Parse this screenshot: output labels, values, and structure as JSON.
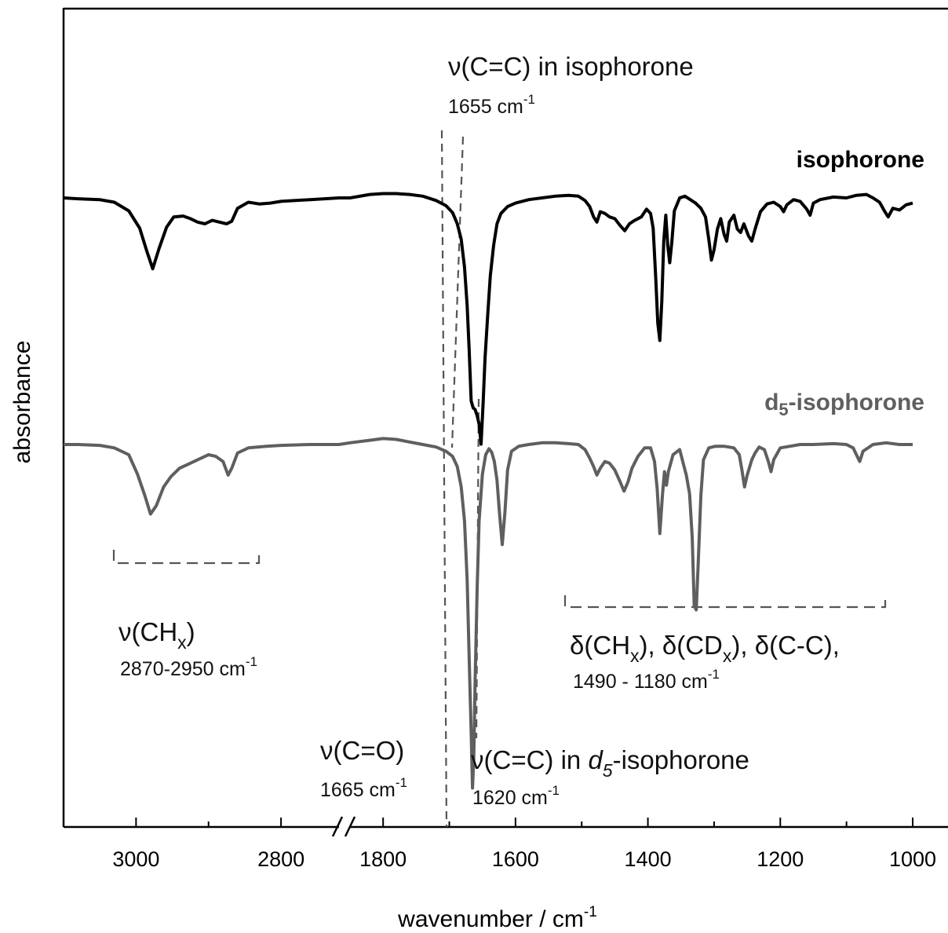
{
  "chart_data": {
    "type": "line",
    "title": "",
    "xlabel": "wavenumber / cm",
    "xlabel_superscript": "-1",
    "ylabel": "absorbance",
    "x_axis": {
      "broken": true,
      "left_segment": {
        "range": [
          3100,
          2720
        ],
        "ticks": [
          3000,
          2800
        ]
      },
      "right_segment": {
        "range": [
          1850,
          1000
        ],
        "ticks": [
          1800,
          1600,
          1400,
          1200,
          1000
        ]
      },
      "reversed": true
    },
    "y_ticks_shown": false,
    "grid": false,
    "series": [
      {
        "name": "isophorone",
        "color": "#000000",
        "label_text": "isophorone",
        "baseline": 0,
        "points": [
          [
            3100,
            0
          ],
          [
            3080,
            0.01
          ],
          [
            3050,
            0.02
          ],
          [
            3030,
            0.05
          ],
          [
            3010,
            0.15
          ],
          [
            2995,
            0.35
          ],
          [
            2985,
            0.62
          ],
          [
            2977,
            0.82
          ],
          [
            2968,
            0.58
          ],
          [
            2958,
            0.34
          ],
          [
            2948,
            0.22
          ],
          [
            2935,
            0.21
          ],
          [
            2925,
            0.24
          ],
          [
            2915,
            0.28
          ],
          [
            2905,
            0.3
          ],
          [
            2895,
            0.26
          ],
          [
            2885,
            0.28
          ],
          [
            2875,
            0.3
          ],
          [
            2868,
            0.27
          ],
          [
            2860,
            0.12
          ],
          [
            2845,
            0.05
          ],
          [
            2830,
            0.07
          ],
          [
            2815,
            0.06
          ],
          [
            2800,
            0.04
          ],
          [
            2780,
            0.03
          ],
          [
            2760,
            0.02
          ],
          [
            2740,
            0.01
          ],
          [
            2720,
            0.0
          ],
          [
            1850,
            0.0
          ],
          [
            1820,
            -0.04
          ],
          [
            1800,
            -0.05
          ],
          [
            1780,
            -0.05
          ],
          [
            1760,
            -0.04
          ],
          [
            1740,
            -0.02
          ],
          [
            1720,
            0.03
          ],
          [
            1705,
            0.09
          ],
          [
            1695,
            0.17
          ],
          [
            1688,
            0.3
          ],
          [
            1682,
            0.48
          ],
          [
            1677,
            0.8
          ],
          [
            1673,
            1.25
          ],
          [
            1670,
            1.75
          ],
          [
            1667,
            2.35
          ],
          [
            1664,
            2.43
          ],
          [
            1661,
            2.45
          ],
          [
            1658,
            2.52
          ],
          [
            1655,
            2.62
          ],
          [
            1652,
            2.85
          ],
          [
            1649,
            2.4
          ],
          [
            1646,
            1.85
          ],
          [
            1642,
            1.35
          ],
          [
            1638,
            0.9
          ],
          [
            1633,
            0.55
          ],
          [
            1628,
            0.3
          ],
          [
            1622,
            0.18
          ],
          [
            1612,
            0.1
          ],
          [
            1600,
            0.06
          ],
          [
            1580,
            0.02
          ],
          [
            1560,
            0.0
          ],
          [
            1540,
            -0.02
          ],
          [
            1520,
            -0.03
          ],
          [
            1505,
            -0.02
          ],
          [
            1495,
            0.03
          ],
          [
            1488,
            0.1
          ],
          [
            1482,
            0.22
          ],
          [
            1477,
            0.28
          ],
          [
            1472,
            0.16
          ],
          [
            1465,
            0.18
          ],
          [
            1458,
            0.22
          ],
          [
            1450,
            0.24
          ],
          [
            1442,
            0.32
          ],
          [
            1435,
            0.38
          ],
          [
            1428,
            0.3
          ],
          [
            1420,
            0.26
          ],
          [
            1410,
            0.22
          ],
          [
            1402,
            0.13
          ],
          [
            1396,
            0.18
          ],
          [
            1392,
            0.35
          ],
          [
            1388,
            0.95
          ],
          [
            1385,
            1.45
          ],
          [
            1382,
            1.65
          ],
          [
            1379,
            1.2
          ],
          [
            1376,
            0.5
          ],
          [
            1373,
            0.2
          ],
          [
            1370,
            0.55
          ],
          [
            1367,
            0.75
          ],
          [
            1364,
            0.52
          ],
          [
            1360,
            0.15
          ],
          [
            1352,
            0.0
          ],
          [
            1344,
            -0.02
          ],
          [
            1336,
            0.02
          ],
          [
            1328,
            0.06
          ],
          [
            1320,
            0.12
          ],
          [
            1313,
            0.22
          ],
          [
            1308,
            0.48
          ],
          [
            1304,
            0.72
          ],
          [
            1300,
            0.6
          ],
          [
            1295,
            0.36
          ],
          [
            1290,
            0.24
          ],
          [
            1285,
            0.42
          ],
          [
            1281,
            0.5
          ],
          [
            1277,
            0.28
          ],
          [
            1270,
            0.2
          ],
          [
            1265,
            0.36
          ],
          [
            1260,
            0.4
          ],
          [
            1255,
            0.3
          ],
          [
            1248,
            0.44
          ],
          [
            1243,
            0.5
          ],
          [
            1238,
            0.36
          ],
          [
            1230,
            0.16
          ],
          [
            1220,
            0.07
          ],
          [
            1210,
            0.05
          ],
          [
            1200,
            0.1
          ],
          [
            1195,
            0.16
          ],
          [
            1190,
            0.08
          ],
          [
            1180,
            0.02
          ],
          [
            1170,
            0.04
          ],
          [
            1160,
            0.13
          ],
          [
            1155,
            0.2
          ],
          [
            1150,
            0.06
          ],
          [
            1140,
            0.02
          ],
          [
            1120,
            -0.01
          ],
          [
            1100,
            0.0
          ],
          [
            1085,
            -0.03
          ],
          [
            1070,
            -0.04
          ],
          [
            1060,
            0.0
          ],
          [
            1050,
            0.05
          ],
          [
            1042,
            0.16
          ],
          [
            1037,
            0.22
          ],
          [
            1030,
            0.12
          ],
          [
            1020,
            0.14
          ],
          [
            1010,
            0.08
          ],
          [
            1000,
            0.06
          ]
        ]
      },
      {
        "name": "d5-isophorone",
        "color": "#5f5f5f",
        "label_text": "-isophorone",
        "label_prefix": "d",
        "label_subscript": "5",
        "baseline": 0,
        "points": [
          [
            3100,
            0
          ],
          [
            3080,
            0.0
          ],
          [
            3050,
            0.01
          ],
          [
            3030,
            0.04
          ],
          [
            3010,
            0.12
          ],
          [
            2998,
            0.35
          ],
          [
            2988,
            0.6
          ],
          [
            2980,
            0.82
          ],
          [
            2972,
            0.72
          ],
          [
            2962,
            0.5
          ],
          [
            2952,
            0.38
          ],
          [
            2940,
            0.28
          ],
          [
            2930,
            0.24
          ],
          [
            2915,
            0.18
          ],
          [
            2900,
            0.12
          ],
          [
            2890,
            0.14
          ],
          [
            2880,
            0.2
          ],
          [
            2873,
            0.36
          ],
          [
            2868,
            0.28
          ],
          [
            2860,
            0.1
          ],
          [
            2845,
            0.04
          ],
          [
            2820,
            0.02
          ],
          [
            2800,
            0.01
          ],
          [
            2760,
            0.0
          ],
          [
            2720,
            0.0
          ],
          [
            1850,
            -0.02
          ],
          [
            1820,
            -0.05
          ],
          [
            1800,
            -0.07
          ],
          [
            1780,
            -0.06
          ],
          [
            1760,
            -0.03
          ],
          [
            1740,
            0.0
          ],
          [
            1720,
            0.03
          ],
          [
            1705,
            0.08
          ],
          [
            1695,
            0.14
          ],
          [
            1688,
            0.26
          ],
          [
            1682,
            0.5
          ],
          [
            1677,
            0.9
          ],
          [
            1673,
            1.6
          ],
          [
            1670,
            2.5
          ],
          [
            1667,
            3.4
          ],
          [
            1665,
            4.05
          ],
          [
            1663,
            3.7
          ],
          [
            1661,
            2.8
          ],
          [
            1658,
            1.7
          ],
          [
            1655,
            0.9
          ],
          [
            1650,
            0.35
          ],
          [
            1645,
            0.12
          ],
          [
            1640,
            0.05
          ],
          [
            1636,
            0.09
          ],
          [
            1632,
            0.2
          ],
          [
            1628,
            0.42
          ],
          [
            1624,
            0.82
          ],
          [
            1620,
            1.18
          ],
          [
            1616,
            0.8
          ],
          [
            1612,
            0.3
          ],
          [
            1606,
            0.08
          ],
          [
            1595,
            0.02
          ],
          [
            1580,
            0.0
          ],
          [
            1560,
            -0.02
          ],
          [
            1540,
            -0.02
          ],
          [
            1520,
            -0.01
          ],
          [
            1505,
            0.0
          ],
          [
            1495,
            0.06
          ],
          [
            1488,
            0.16
          ],
          [
            1482,
            0.26
          ],
          [
            1477,
            0.36
          ],
          [
            1472,
            0.28
          ],
          [
            1465,
            0.2
          ],
          [
            1458,
            0.22
          ],
          [
            1450,
            0.3
          ],
          [
            1442,
            0.44
          ],
          [
            1436,
            0.55
          ],
          [
            1430,
            0.44
          ],
          [
            1424,
            0.28
          ],
          [
            1415,
            0.14
          ],
          [
            1405,
            0.04
          ],
          [
            1396,
            0.04
          ],
          [
            1390,
            0.2
          ],
          [
            1386,
            0.52
          ],
          [
            1382,
            1.05
          ],
          [
            1378,
            0.6
          ],
          [
            1375,
            0.32
          ],
          [
            1372,
            0.48
          ],
          [
            1369,
            0.32
          ],
          [
            1362,
            0.12
          ],
          [
            1352,
            0.06
          ],
          [
            1346,
            0.24
          ],
          [
            1342,
            0.36
          ],
          [
            1337,
            0.58
          ],
          [
            1333,
            1.1
          ],
          [
            1330,
            1.9
          ],
          [
            1327,
            1.95
          ],
          [
            1324,
            1.4
          ],
          [
            1320,
            0.6
          ],
          [
            1316,
            0.18
          ],
          [
            1308,
            0.04
          ],
          [
            1298,
            0.02
          ],
          [
            1285,
            0.02
          ],
          [
            1270,
            0.04
          ],
          [
            1262,
            0.12
          ],
          [
            1258,
            0.3
          ],
          [
            1254,
            0.5
          ],
          [
            1250,
            0.36
          ],
          [
            1243,
            0.18
          ],
          [
            1238,
            0.1
          ],
          [
            1232,
            0.03
          ],
          [
            1224,
            0.06
          ],
          [
            1218,
            0.2
          ],
          [
            1214,
            0.32
          ],
          [
            1210,
            0.18
          ],
          [
            1200,
            0.04
          ],
          [
            1185,
            0.02
          ],
          [
            1170,
            0.0
          ],
          [
            1150,
            0.0
          ],
          [
            1120,
            -0.01
          ],
          [
            1100,
            0.0
          ],
          [
            1090,
            0.04
          ],
          [
            1085,
            0.12
          ],
          [
            1080,
            0.2
          ],
          [
            1075,
            0.08
          ],
          [
            1060,
            0.0
          ],
          [
            1040,
            -0.02
          ],
          [
            1020,
            0.0
          ],
          [
            1000,
            0.0
          ]
        ]
      }
    ],
    "annotations": [
      {
        "id": "cc-iso",
        "main": "ν(C=C) in isophorone",
        "sub": "1655 cm",
        "sub_sup": "-1"
      },
      {
        "id": "ch",
        "main": "ν(CH",
        "main_sub": "x",
        "main_end": ")",
        "sub": "2870-2950 cm",
        "sub_sup": "-1"
      },
      {
        "id": "delta",
        "parts": [
          "δ(CH",
          "x",
          "), δ(CD",
          "x",
          "), δ(C-C),"
        ],
        "sub": "1490 - 1180 cm",
        "sub_sup": "-1"
      },
      {
        "id": "co",
        "main": "ν(C=O)",
        "sub": "1665 cm",
        "sub_sup": "-1"
      },
      {
        "id": "cc-d5",
        "main_prefix": "ν(C=C) in ",
        "main_italic": "d",
        "main_italic_sub": "5",
        "main_end": "-isophorone",
        "sub": "1620 cm",
        "sub_sup": "-1"
      }
    ]
  }
}
